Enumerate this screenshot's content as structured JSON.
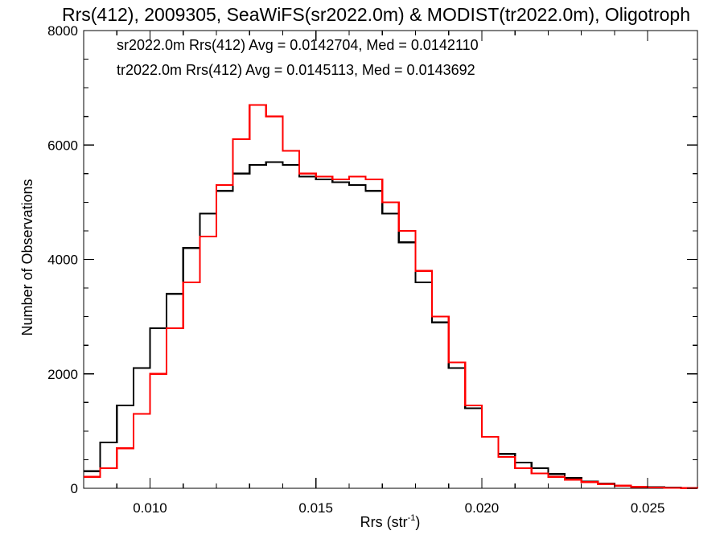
{
  "chart_data": {
    "type": "line",
    "title": "Rrs(412), 2009305, SeaWiFS(sr2022.0m) & MODIST(tr2022.0m), Oligotroph",
    "xlabel_main": "Rrs (str",
    "xlabel_superscript": "-1",
    "xlabel_close": ")",
    "ylabel": "Number of Observations",
    "xlim": [
      0.008,
      0.0265
    ],
    "ylim": [
      0,
      8000
    ],
    "x_ticks": [
      0.01,
      0.015,
      0.02,
      0.025
    ],
    "x_tick_labels": [
      "0.010",
      "0.015",
      "0.020",
      "0.025"
    ],
    "y_ticks": [
      0,
      2000,
      4000,
      6000,
      8000
    ],
    "y_tick_labels": [
      "0",
      "2000",
      "4000",
      "6000",
      "8000"
    ],
    "stats_lines": [
      {
        "text": "sr2022.0m Rrs(412) Avg = 0.0142704, Med = 0.0142110",
        "color": "#000000"
      },
      {
        "text": "tr2022.0m Rrs(412) Avg = 0.0145113, Med = 0.0143692",
        "color": "#ff0000"
      }
    ],
    "x": [
      0.008,
      0.0085,
      0.009,
      0.0095,
      0.01,
      0.0105,
      0.011,
      0.0115,
      0.012,
      0.0125,
      0.013,
      0.0135,
      0.014,
      0.0145,
      0.015,
      0.0155,
      0.016,
      0.0165,
      0.017,
      0.0175,
      0.018,
      0.0185,
      0.019,
      0.0195,
      0.02,
      0.0205,
      0.021,
      0.0215,
      0.022,
      0.0225,
      0.023,
      0.0235,
      0.024,
      0.0245,
      0.025,
      0.0255,
      0.026,
      0.0265
    ],
    "series": [
      {
        "color": "#000000",
        "values": [
          300,
          800,
          1450,
          2100,
          2800,
          3400,
          4200,
          4800,
          5200,
          5500,
          5650,
          5700,
          5650,
          5450,
          5400,
          5350,
          5300,
          5200,
          4800,
          4300,
          3600,
          2900,
          2100,
          1400,
          900,
          600,
          450,
          350,
          250,
          180,
          120,
          80,
          50,
          30,
          20,
          10,
          5,
          0
        ]
      },
      {
        "color": "#ff0000",
        "values": [
          200,
          350,
          700,
          1300,
          2000,
          2800,
          3600,
          4400,
          5300,
          6100,
          6700,
          6500,
          5900,
          5500,
          5450,
          5400,
          5450,
          5400,
          5000,
          4500,
          3800,
          3000,
          2200,
          1450,
          900,
          550,
          350,
          260,
          200,
          150,
          110,
          75,
          45,
          25,
          15,
          8,
          3,
          0
        ]
      }
    ]
  }
}
